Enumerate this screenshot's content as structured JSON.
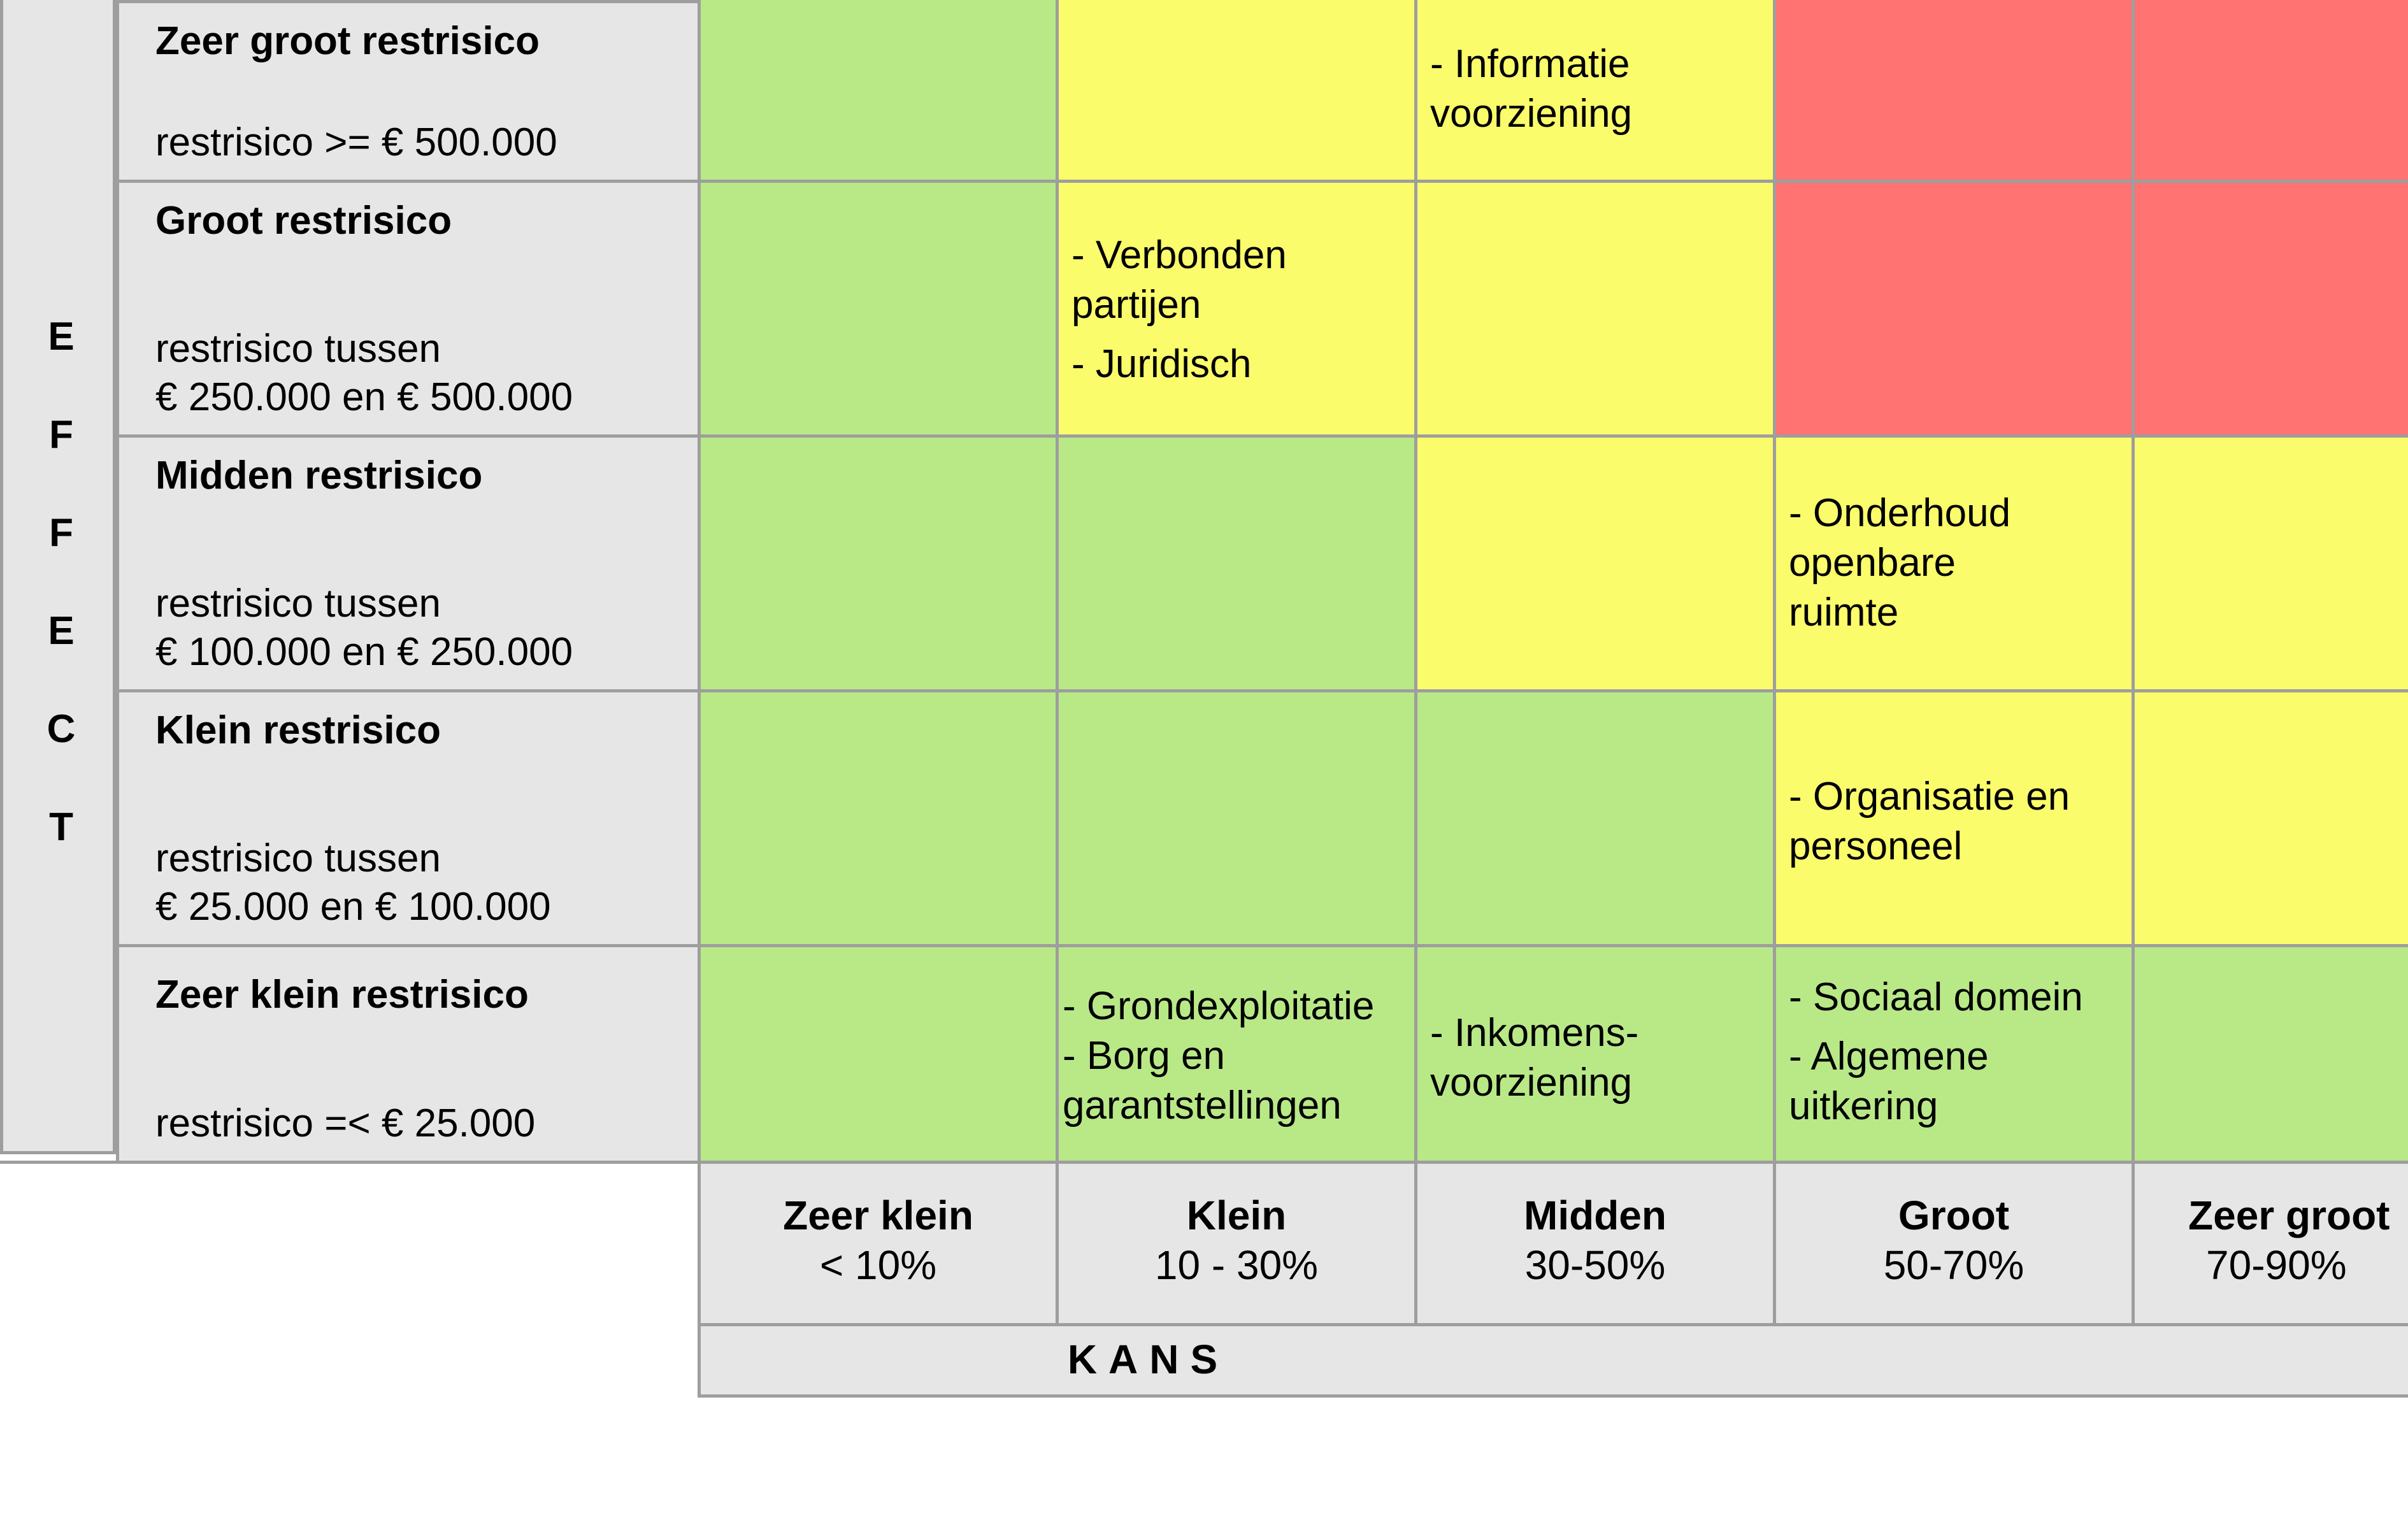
{
  "effect_axis": {
    "letters": [
      "E",
      "F",
      "F",
      "E",
      "C",
      "T"
    ]
  },
  "kans_axis": {
    "label": "KANS"
  },
  "rows": [
    {
      "title": "Zeer groot restrisico",
      "subtitle": "restrisico >= € 500.000"
    },
    {
      "title": "Groot restrisico",
      "subtitle": "restrisico tussen\n€ 250.000 en € 500.000"
    },
    {
      "title": "Midden restrisico",
      "subtitle": "restrisico tussen\n€ 100.000 en € 250.000"
    },
    {
      "title": "Klein restrisico",
      "subtitle": "restrisico tussen\n€ 25.000 en € 100.000"
    },
    {
      "title": "Zeer klein restrisico",
      "subtitle": "restrisico  =< € 25.000"
    }
  ],
  "columns": [
    {
      "title": "Zeer klein",
      "range": "< 10%"
    },
    {
      "title": "Klein",
      "range": "10 - 30%"
    },
    {
      "title": "Midden",
      "range": "30-50%"
    },
    {
      "title": "Groot",
      "range": "50-70%"
    },
    {
      "title": "Zeer groot",
      "range": "70-90%"
    }
  ],
  "colors": {
    "green": "#b9e987",
    "yellow": "#fbfc6b",
    "red": "#ff7373",
    "label_bg": "#e6e6e6",
    "grid": "#9e9e9e"
  },
  "matrix": [
    [
      "green",
      "yellow",
      "yellow",
      "red",
      "red"
    ],
    [
      "green",
      "yellow",
      "yellow",
      "red",
      "red"
    ],
    [
      "green",
      "green",
      "yellow",
      "yellow",
      "yellow"
    ],
    [
      "green",
      "green",
      "green",
      "yellow",
      "yellow"
    ],
    [
      "green",
      "green",
      "green",
      "green",
      "green"
    ]
  ],
  "cell_items": {
    "r0c2": [
      "- Informatie\n   voorziening"
    ],
    "r1c1": [
      "- Verbonden\n     partijen",
      " - Juridisch"
    ],
    "r2c3": [
      "- Onderhoud\n   openbare\n   ruimte"
    ],
    "r3c3": [
      "- Organisatie en\npersoneel"
    ],
    "r4c1": [
      "- Grondexploitatie",
      "- Borg en\n   garantstellingen"
    ],
    "r4c2": [
      "- Inkomens-\n   voorziening"
    ],
    "r4c3": [
      "- Sociaal domein",
      "- Algemene\n   uitkering"
    ]
  }
}
